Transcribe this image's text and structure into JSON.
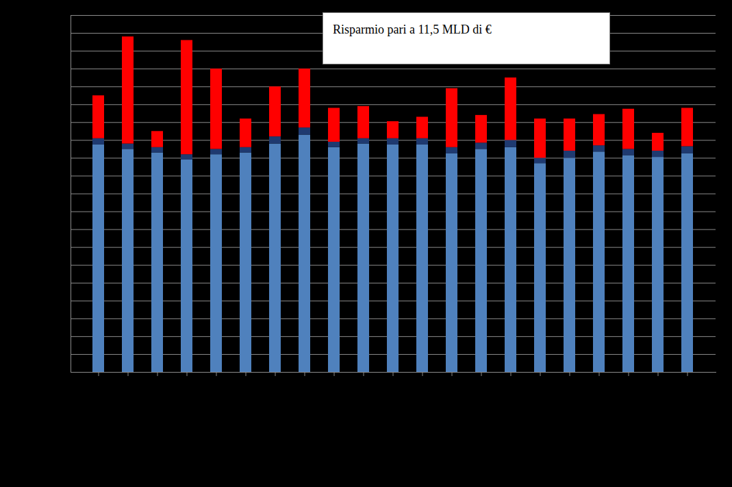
{
  "chart_data": {
    "type": "bar",
    "stacked": true,
    "categories": [
      null,
      null,
      null,
      null,
      null,
      null,
      null,
      null,
      null,
      null,
      null,
      null,
      null,
      null,
      null,
      null,
      null,
      null,
      null,
      null,
      null
    ],
    "series": [
      {
        "color": "#4f81bd",
        "values": [
          12.75,
          12.5,
          12.3,
          11.9,
          12.2,
          12.3,
          12.8,
          13.3,
          12.6,
          12.8,
          12.75,
          12.75,
          12.25,
          12.5,
          12.6,
          11.7,
          12.0,
          12.35,
          12.15,
          12.05,
          12.25
        ]
      },
      {
        "color": "#1f3a70",
        "values": [
          0.35,
          0.3,
          0.3,
          0.3,
          0.3,
          0.3,
          0.4,
          0.4,
          0.3,
          0.3,
          0.35,
          0.35,
          0.35,
          0.35,
          0.4,
          0.3,
          0.4,
          0.35,
          0.35,
          0.35,
          0.4
        ]
      },
      {
        "color": "#ff0000",
        "values": [
          2.4,
          6.0,
          0.9,
          6.4,
          4.5,
          1.6,
          2.8,
          3.3,
          1.9,
          1.8,
          0.95,
          1.2,
          3.3,
          1.55,
          3.5,
          2.2,
          1.8,
          1.75,
          2.25,
          1.0,
          2.15
        ]
      }
    ],
    "ylim": [
      0,
      20
    ],
    "yticks": [
      0,
      1,
      2,
      3,
      4,
      5,
      6,
      7,
      8,
      9,
      10,
      11,
      12,
      13,
      14,
      15,
      16,
      17,
      18,
      19,
      20
    ],
    "grid": true,
    "tick_labels": false,
    "annotations": [
      {
        "text": "Risparmio pari a 11,5 MLD di €"
      }
    ]
  }
}
